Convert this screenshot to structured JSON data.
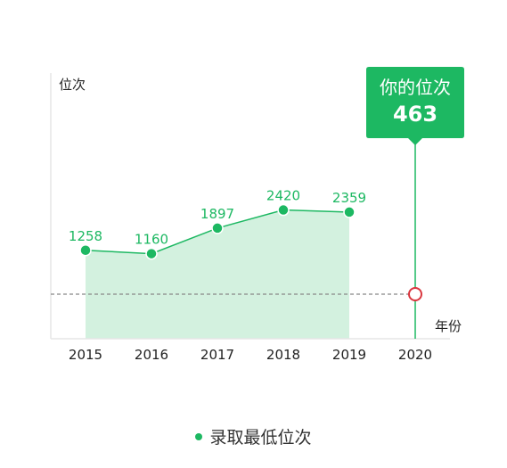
{
  "chart_data": {
    "type": "area",
    "categories": [
      "2015",
      "2016",
      "2017",
      "2018",
      "2019",
      "2020"
    ],
    "series": [
      {
        "name": "录取最低位次",
        "values": [
          1258,
          1160,
          1897,
          2420,
          2359,
          null
        ]
      }
    ],
    "xlabel": "年份",
    "ylabel": "位次",
    "reference": {
      "category": "2020",
      "title": "你的位次",
      "value": 463
    },
    "legend_position": "bottom-center",
    "grid": false
  },
  "colors": {
    "accent": "#1db862",
    "area_fill": "#d3f1df",
    "marker_ring": "#d9363e",
    "axis": "#e6e6e6",
    "dashed_line": "#888888"
  }
}
